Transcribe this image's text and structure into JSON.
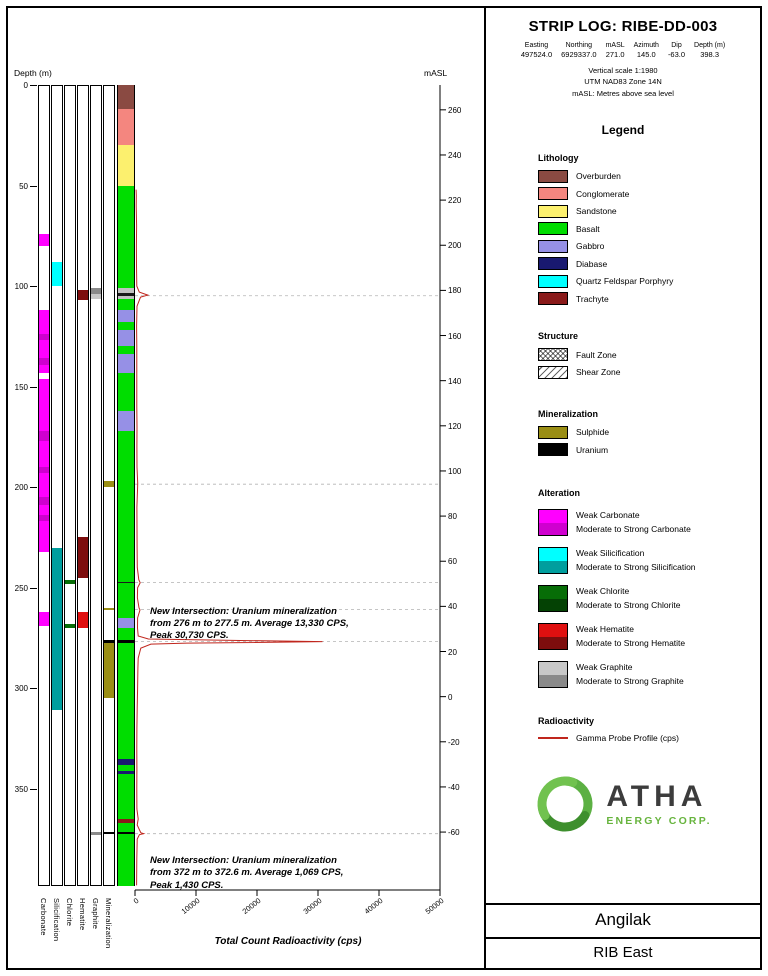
{
  "page": {
    "header": {
      "title": "STRIP LOG: RIBE-DD-003",
      "collar": {
        "headers": [
          "Easting",
          "Northing",
          "mASL",
          "Azimuth",
          "Dip",
          "Depth (m)"
        ],
        "values": [
          "497524.0",
          "6929337.0",
          "271.0",
          "145.0",
          "-63.0",
          "398.3"
        ]
      },
      "notes": [
        "Vertical scale 1:1980",
        "UTM NAD83 Zone 14N",
        "mASL: Metres above sea level"
      ]
    },
    "legend": {
      "title": "Legend",
      "lithology": {
        "title": "Lithology",
        "items": [
          {
            "label": "Overburden",
            "color": "#8a4a42"
          },
          {
            "label": "Conglomerate",
            "color": "#f4867f"
          },
          {
            "label": "Sandstone",
            "color": "#fcf06e"
          },
          {
            "label": "Basalt",
            "color": "#00dd00"
          },
          {
            "label": "Gabbro",
            "color": "#9690e6"
          },
          {
            "label": "Diabase",
            "color": "#191970"
          },
          {
            "label": "Quartz Feldspar Porphyry",
            "color": "#00ffff"
          },
          {
            "label": "Trachyte",
            "color": "#8a1a1a"
          }
        ]
      },
      "structure": {
        "title": "Structure",
        "items": [
          {
            "label": "Fault Zone",
            "pattern": "fault"
          },
          {
            "label": "Shear Zone",
            "pattern": "shear"
          }
        ]
      },
      "mineralization": {
        "title": "Mineralization",
        "items": [
          {
            "label": "Sulphide",
            "color": "#9a8e14"
          },
          {
            "label": "Uranium",
            "color": "#000000"
          }
        ]
      },
      "alteration": {
        "title": "Alteration",
        "pairs": [
          {
            "weak": "Weak Carbonate",
            "strong": "Moderate to Strong Carbonate",
            "weak_color": "#ff00ff",
            "strong_color": "#cf00cf"
          },
          {
            "weak": "Weak Silicification",
            "strong": "Moderate to Strong Silicification",
            "weak_color": "#00ffff",
            "strong_color": "#009e9e"
          },
          {
            "weak": "Weak Chlorite",
            "strong": "Moderate to Strong Chlorite",
            "weak_color": "#076d07",
            "strong_color": "#044204"
          },
          {
            "weak": "Weak Hematite",
            "strong": "Moderate to Strong Hematite",
            "weak_color": "#e01010",
            "strong_color": "#7d0d0d"
          },
          {
            "weak": "Weak Graphite",
            "strong": "Moderate to Strong Graphite",
            "weak_color": "#c8c8c8",
            "strong_color": "#8a8a8a"
          }
        ]
      },
      "radioactivity": {
        "title": "Radioactivity",
        "label": "Gamma Probe Profile (cps)",
        "color": "#c0261d"
      }
    },
    "logo": {
      "name": "ATHA",
      "subtitle": "ENERGY CORP.",
      "green": "#67b43e"
    },
    "footer": {
      "project": "Angilak",
      "area": "RIB East"
    }
  },
  "chart_data": {
    "type": "strip-log",
    "title": "STRIP LOG: RIBE-DD-003",
    "depth_axis": {
      "label": "Depth (m)",
      "ticks": [
        0,
        50,
        100,
        150,
        200,
        250,
        300,
        350
      ],
      "max_depth_m": 398.3
    },
    "masl_axis": {
      "label": "mASL",
      "ticks": [
        260,
        240,
        220,
        200,
        180,
        160,
        140,
        120,
        100,
        80,
        60,
        40,
        20,
        0,
        -20,
        -40,
        -60
      ],
      "collar_masl": 271.0,
      "dip_deg": -63.0
    },
    "cps_axis": {
      "label": "Total Count Radioactivity (cps)",
      "ticks": [
        0,
        10000,
        20000,
        30000,
        40000,
        50000
      ],
      "max": 50000
    },
    "strip_columns": [
      "Carbonate",
      "Silicification",
      "Chlorite",
      "Hematite",
      "Graphite",
      "Mineralization"
    ],
    "lithology_colors": {
      "Overburden": "#8a4a42",
      "Conglomerate": "#f4867f",
      "Sandstone": "#fcf06e",
      "Basalt": "#00dd00",
      "Gabbro": "#9690e6",
      "Diabase": "#191970",
      "Quartz Feldspar Porphyry": "#00ffff",
      "Trachyte": "#8a1a1a",
      "Uranium": "#000000",
      "Shear Zone": "#c2c2c2",
      "Marker": "#1a1a1a"
    },
    "lithology_intervals": [
      {
        "from": 0,
        "to": 12,
        "unit": "Overburden"
      },
      {
        "from": 12,
        "to": 30,
        "unit": "Conglomerate"
      },
      {
        "from": 30,
        "to": 50,
        "unit": "Sandstone"
      },
      {
        "from": 50,
        "to": 70,
        "unit": "Basalt"
      },
      {
        "from": 70,
        "to": 77,
        "unit": "Basalt",
        "pattern": "fault"
      },
      {
        "from": 77,
        "to": 82,
        "unit": "Basalt"
      },
      {
        "from": 82,
        "to": 86,
        "unit": "Basalt",
        "pattern": "fault"
      },
      {
        "from": 86,
        "to": 91,
        "unit": "Basalt"
      },
      {
        "from": 91,
        "to": 96,
        "unit": "Basalt",
        "pattern": "fault"
      },
      {
        "from": 96,
        "to": 101,
        "unit": "Basalt"
      },
      {
        "from": 101,
        "to": 103.5,
        "unit": "Shear Zone",
        "pattern": "shear"
      },
      {
        "from": 103.5,
        "to": 105,
        "unit": "Marker"
      },
      {
        "from": 105,
        "to": 106.5,
        "unit": "Shear Zone",
        "pattern": "shear"
      },
      {
        "from": 106.5,
        "to": 112,
        "unit": "Basalt"
      },
      {
        "from": 112,
        "to": 118,
        "unit": "Gabbro"
      },
      {
        "from": 118,
        "to": 122,
        "unit": "Basalt",
        "pattern": "fault"
      },
      {
        "from": 122,
        "to": 130,
        "unit": "Gabbro"
      },
      {
        "from": 130,
        "to": 134,
        "unit": "Basalt",
        "pattern": "fault"
      },
      {
        "from": 134,
        "to": 143,
        "unit": "Gabbro"
      },
      {
        "from": 143,
        "to": 148,
        "unit": "Basalt",
        "pattern": "fault"
      },
      {
        "from": 148,
        "to": 152,
        "unit": "Basalt"
      },
      {
        "from": 152,
        "to": 157,
        "unit": "Basalt",
        "pattern": "fault"
      },
      {
        "from": 157,
        "to": 162,
        "unit": "Basalt"
      },
      {
        "from": 162,
        "to": 172,
        "unit": "Gabbro"
      },
      {
        "from": 172,
        "to": 176,
        "unit": "Basalt",
        "pattern": "fault"
      },
      {
        "from": 176,
        "to": 180,
        "unit": "Basalt"
      },
      {
        "from": 180,
        "to": 186,
        "unit": "Basalt",
        "pattern": "fault"
      },
      {
        "from": 186,
        "to": 199,
        "unit": "Basalt"
      },
      {
        "from": 199,
        "to": 204,
        "unit": "Basalt",
        "pattern": "fault"
      },
      {
        "from": 204,
        "to": 215,
        "unit": "Basalt"
      },
      {
        "from": 215,
        "to": 220,
        "unit": "Basalt",
        "pattern": "fault"
      },
      {
        "from": 220,
        "to": 232,
        "unit": "Basalt"
      },
      {
        "from": 232,
        "to": 238,
        "unit": "Basalt",
        "pattern": "fault"
      },
      {
        "from": 238,
        "to": 247,
        "unit": "Basalt"
      },
      {
        "from": 247,
        "to": 247.7,
        "unit": "Marker"
      },
      {
        "from": 247.7,
        "to": 260,
        "unit": "Basalt",
        "pattern": "fault"
      },
      {
        "from": 260,
        "to": 265,
        "unit": "Basalt"
      },
      {
        "from": 265,
        "to": 270,
        "unit": "Gabbro"
      },
      {
        "from": 270,
        "to": 276,
        "unit": "Basalt"
      },
      {
        "from": 276,
        "to": 277.5,
        "unit": "Uranium"
      },
      {
        "from": 277.5,
        "to": 305,
        "unit": "Basalt",
        "pattern": "fault"
      },
      {
        "from": 305,
        "to": 335,
        "unit": "Basalt"
      },
      {
        "from": 335,
        "to": 338,
        "unit": "Diabase"
      },
      {
        "from": 338,
        "to": 341,
        "unit": "Basalt"
      },
      {
        "from": 341,
        "to": 342.5,
        "unit": "Diabase"
      },
      {
        "from": 342.5,
        "to": 365,
        "unit": "Basalt"
      },
      {
        "from": 365,
        "to": 367,
        "unit": "Trachyte"
      },
      {
        "from": 367,
        "to": 371.5,
        "unit": "Basalt"
      },
      {
        "from": 371.5,
        "to": 372.6,
        "unit": "Uranium"
      },
      {
        "from": 372.6,
        "to": 398.3,
        "unit": "Basalt"
      }
    ],
    "alteration_colors": {
      "Carbonate": {
        "weak": "#ff00ff",
        "strong": "#cf00cf"
      },
      "Silicification": {
        "weak": "#00ffff",
        "strong": "#009e9e"
      },
      "Chlorite": {
        "weak": "#076d07",
        "strong": "#044204"
      },
      "Hematite": {
        "weak": "#e01010",
        "strong": "#7d0d0d"
      },
      "Graphite": {
        "weak": "#c8c8c8",
        "strong": "#8a8a8a"
      }
    },
    "alteration_intervals": [
      {
        "column": "Carbonate",
        "from": 74,
        "to": 80,
        "grade": "weak"
      },
      {
        "column": "Carbonate",
        "from": 112,
        "to": 124,
        "grade": "weak"
      },
      {
        "column": "Carbonate",
        "from": 124,
        "to": 127,
        "grade": "strong"
      },
      {
        "column": "Carbonate",
        "from": 127,
        "to": 136,
        "grade": "weak"
      },
      {
        "column": "Carbonate",
        "from": 136,
        "to": 139,
        "grade": "strong"
      },
      {
        "column": "Carbonate",
        "from": 139,
        "to": 143,
        "grade": "weak"
      },
      {
        "column": "Carbonate",
        "from": 146,
        "to": 172,
        "grade": "weak"
      },
      {
        "column": "Carbonate",
        "from": 172,
        "to": 177,
        "grade": "strong"
      },
      {
        "column": "Carbonate",
        "from": 177,
        "to": 190,
        "grade": "weak"
      },
      {
        "column": "Carbonate",
        "from": 190,
        "to": 193,
        "grade": "strong"
      },
      {
        "column": "Carbonate",
        "from": 193,
        "to": 205,
        "grade": "weak"
      },
      {
        "column": "Carbonate",
        "from": 205,
        "to": 209,
        "grade": "strong"
      },
      {
        "column": "Carbonate",
        "from": 209,
        "to": 214,
        "grade": "weak"
      },
      {
        "column": "Carbonate",
        "from": 214,
        "to": 217,
        "grade": "strong"
      },
      {
        "column": "Carbonate",
        "from": 217,
        "to": 232,
        "grade": "weak"
      },
      {
        "column": "Carbonate",
        "from": 262,
        "to": 269,
        "grade": "weak"
      },
      {
        "column": "Silicification",
        "from": 88,
        "to": 100,
        "grade": "weak"
      },
      {
        "column": "Silicification",
        "from": 230,
        "to": 311,
        "grade": "strong"
      },
      {
        "column": "Chlorite",
        "from": 246,
        "to": 248,
        "grade": "weak"
      },
      {
        "column": "Chlorite",
        "from": 268,
        "to": 270,
        "grade": "weak"
      },
      {
        "column": "Hematite",
        "from": 102,
        "to": 107,
        "grade": "strong"
      },
      {
        "column": "Hematite",
        "from": 225,
        "to": 245,
        "grade": "strong"
      },
      {
        "column": "Hematite",
        "from": 262,
        "to": 270,
        "grade": "weak"
      },
      {
        "column": "Graphite",
        "from": 101,
        "to": 104,
        "grade": "strong"
      },
      {
        "column": "Graphite",
        "from": 104,
        "to": 106.5,
        "grade": "weak"
      },
      {
        "column": "Graphite",
        "from": 371.5,
        "to": 373,
        "grade": "strong"
      }
    ],
    "mineralization_colors": {
      "Sulphide": "#9a8e14",
      "Uranium": "#000000"
    },
    "mineralization_intervals": [
      {
        "from": 197,
        "to": 200,
        "type": "Sulphide"
      },
      {
        "from": 260.3,
        "to": 261.3,
        "type": "Sulphide"
      },
      {
        "from": 276,
        "to": 277.5,
        "type": "Uranium"
      },
      {
        "from": 277.5,
        "to": 305,
        "type": "Sulphide"
      },
      {
        "from": 371.5,
        "to": 372.6,
        "type": "Uranium"
      }
    ],
    "gamma_profile_cps": [
      [
        52,
        180
      ],
      [
        55,
        220
      ],
      [
        60,
        200
      ],
      [
        70,
        260
      ],
      [
        80,
        230
      ],
      [
        90,
        250
      ],
      [
        100,
        300
      ],
      [
        103,
        700
      ],
      [
        104.5,
        2100
      ],
      [
        105.5,
        900
      ],
      [
        110,
        320
      ],
      [
        120,
        270
      ],
      [
        130,
        290
      ],
      [
        140,
        300
      ],
      [
        150,
        290
      ],
      [
        160,
        300
      ],
      [
        170,
        320
      ],
      [
        180,
        310
      ],
      [
        190,
        330
      ],
      [
        198,
        450
      ],
      [
        200,
        420
      ],
      [
        210,
        310
      ],
      [
        220,
        330
      ],
      [
        230,
        350
      ],
      [
        240,
        370
      ],
      [
        246,
        620
      ],
      [
        247.5,
        850
      ],
      [
        250,
        420
      ],
      [
        255,
        390
      ],
      [
        260,
        660
      ],
      [
        261,
        820
      ],
      [
        265,
        430
      ],
      [
        270,
        410
      ],
      [
        274,
        520
      ],
      [
        275.5,
        2200
      ],
      [
        276.3,
        18500
      ],
      [
        276.8,
        30730
      ],
      [
        277.2,
        21000
      ],
      [
        277.5,
        8500
      ],
      [
        278,
        2600
      ],
      [
        280,
        950
      ],
      [
        285,
        520
      ],
      [
        290,
        470
      ],
      [
        300,
        430
      ],
      [
        310,
        360
      ],
      [
        320,
        310
      ],
      [
        330,
        290
      ],
      [
        340,
        310
      ],
      [
        350,
        290
      ],
      [
        360,
        310
      ],
      [
        365,
        520
      ],
      [
        368,
        360
      ],
      [
        371.8,
        950
      ],
      [
        372.3,
        1430
      ],
      [
        372.8,
        720
      ],
      [
        375,
        360
      ],
      [
        385,
        290
      ],
      [
        398,
        260
      ]
    ],
    "marker_depths_m": [
      104.8,
      198.5,
      247.4,
      260.8,
      276.8,
      372.3
    ],
    "annotations": [
      {
        "at_depth_m": 259,
        "text": "New Intersection: Uranium mineralization from 276 m to 277.5 m. Average 13,330 CPS, Peak 30,730 CPS."
      },
      {
        "at_depth_m": 383,
        "text": "New Intersection: Uranium mineralization from 372 m to 372.6 m. Average 1,069 CPS, Peak 1,430 CPS."
      }
    ]
  }
}
